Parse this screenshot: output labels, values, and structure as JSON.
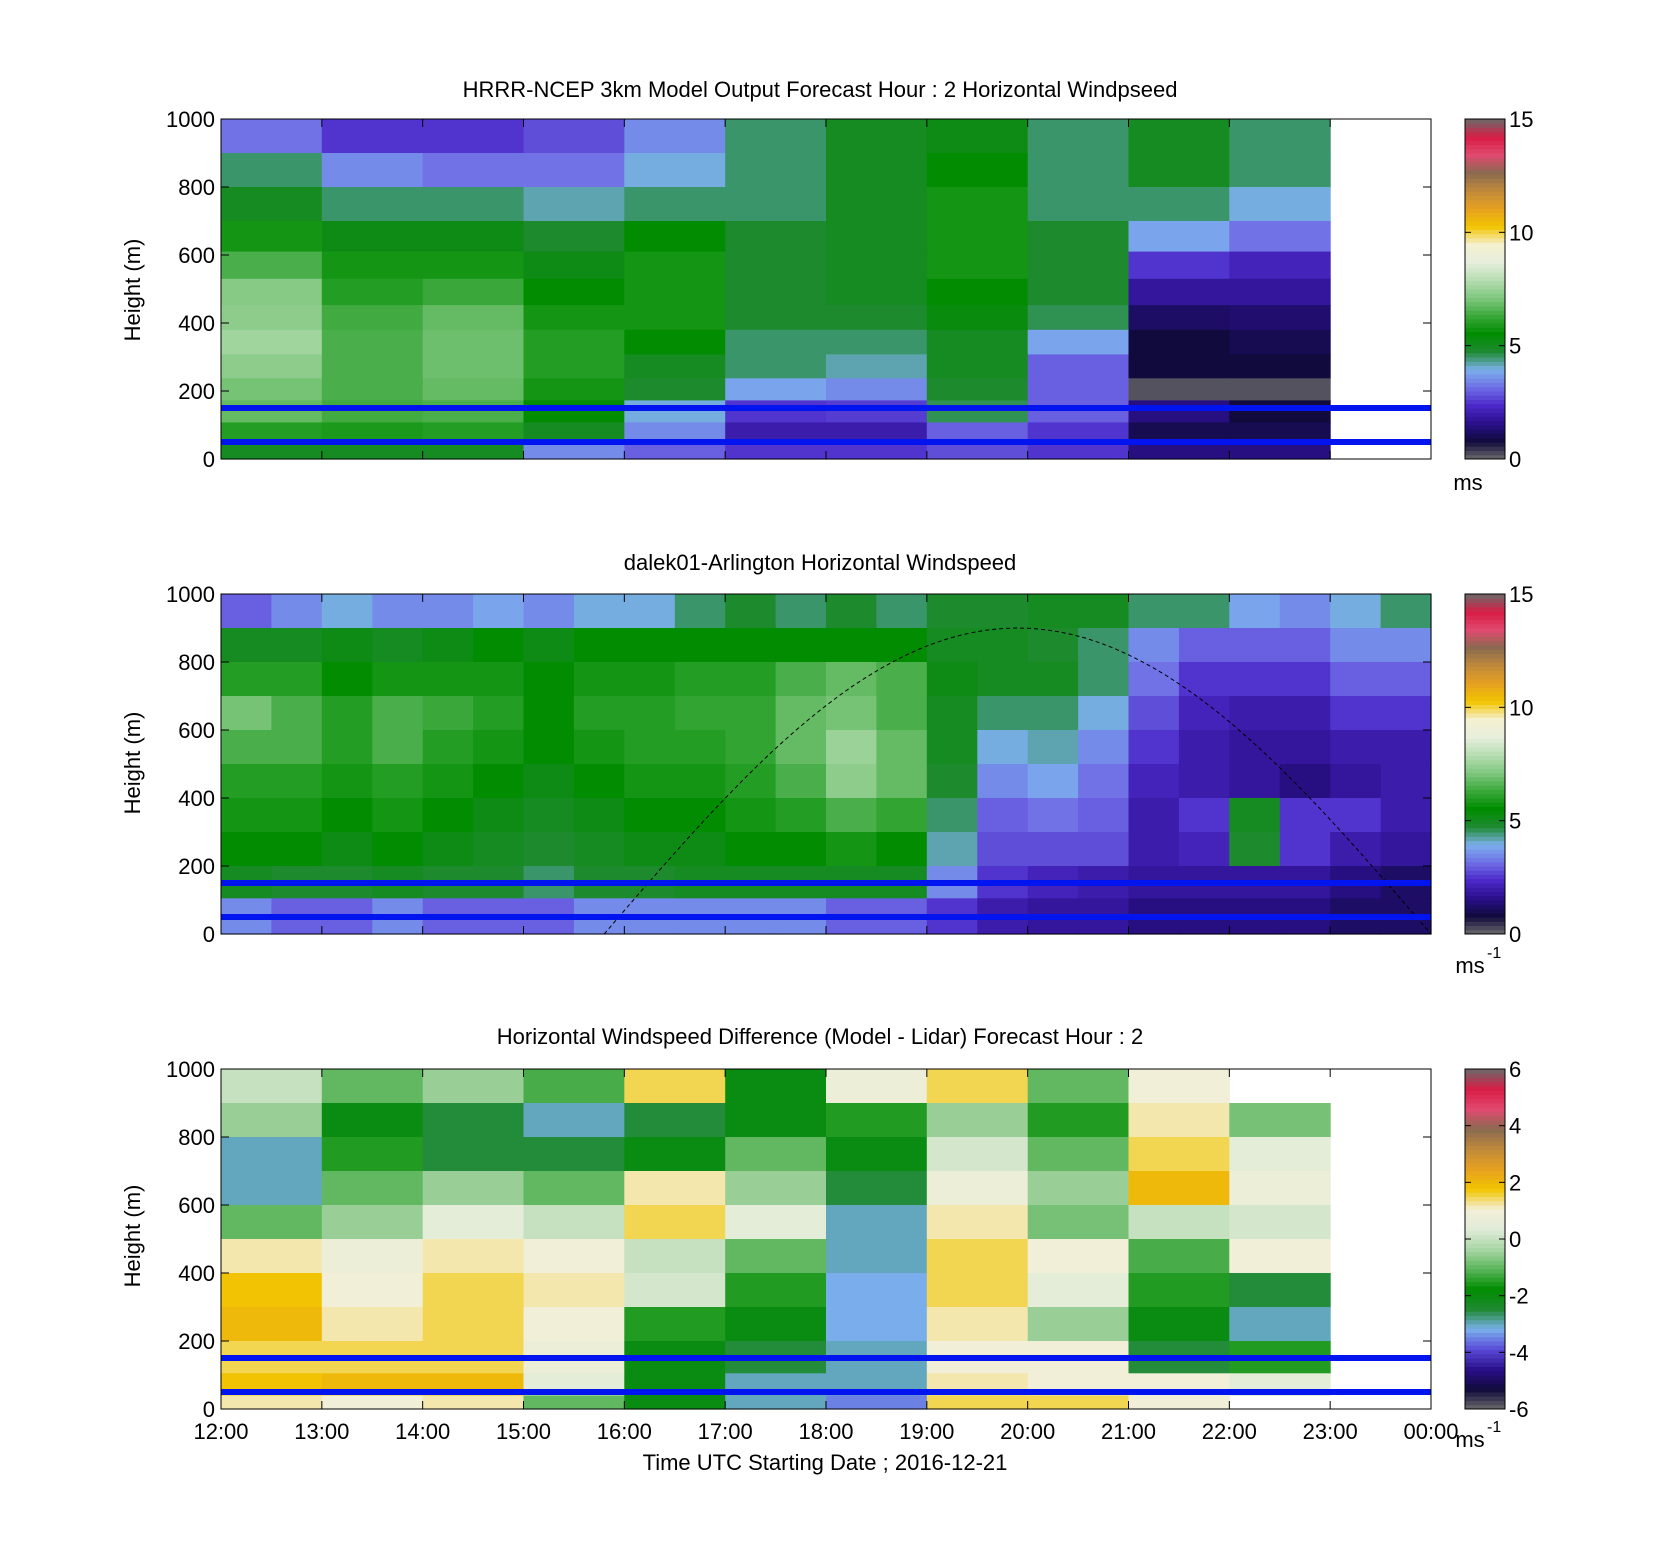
{
  "figure": {
    "xlabel": "Time UTC  Starting Date ; 2016-12-21",
    "x_ticks": [
      "12:00",
      "13:00",
      "14:00",
      "15:00",
      "16:00",
      "17:00",
      "18:00",
      "19:00",
      "20:00",
      "21:00",
      "22:00",
      "23:00",
      "00:00"
    ]
  },
  "chart_data": [
    {
      "type": "heatmap",
      "title": "HRRR-NCEP 3km Model Output   Forecast Hour : 2 Horizontal Windpseed",
      "ylabel": "Height (m)",
      "ylim": [
        0,
        1000
      ],
      "y_ticks": [
        "0",
        "200",
        "400",
        "600",
        "800",
        "1000"
      ],
      "colorbar": {
        "range": [
          0,
          15
        ],
        "ticks": [
          "0",
          "5",
          "10",
          "15"
        ],
        "unit": "ms"
      },
      "reference_lines_m": [
        150,
        50
      ],
      "time_columns": [
        "12:00",
        "13:00",
        "14:00",
        "15:00",
        "16:00",
        "17:00",
        "18:00",
        "19:00",
        "20:00",
        "21:00",
        "22:00"
      ],
      "height_levels_m": [
        950,
        850,
        750,
        650,
        570,
        490,
        415,
        345,
        270,
        205,
        140,
        75,
        30
      ],
      "values_ms": [
        [
          3.2,
          2.5,
          2.5,
          2.8,
          3.5,
          4.5,
          5.0,
          5.2,
          4.5,
          5.0,
          4.5
        ],
        [
          4.5,
          3.5,
          3.2,
          3.2,
          4.0,
          4.5,
          5.0,
          5.5,
          4.5,
          5.0,
          4.5
        ],
        [
          5.0,
          4.5,
          4.5,
          4.2,
          4.5,
          4.5,
          5.0,
          5.8,
          4.5,
          4.5,
          4.0
        ],
        [
          5.8,
          5.2,
          5.2,
          4.8,
          5.5,
          4.8,
          5.0,
          5.8,
          4.8,
          3.8,
          3.2
        ],
        [
          6.5,
          5.8,
          5.8,
          5.2,
          5.8,
          4.8,
          5.0,
          5.8,
          4.8,
          2.5,
          2.2
        ],
        [
          7.2,
          6.0,
          6.3,
          5.5,
          5.8,
          4.8,
          5.0,
          5.5,
          4.8,
          1.8,
          1.8
        ],
        [
          7.3,
          6.4,
          6.8,
          5.8,
          5.8,
          4.8,
          4.8,
          5.3,
          4.6,
          1.2,
          1.3
        ],
        [
          7.6,
          6.5,
          6.9,
          6.0,
          5.5,
          4.5,
          4.5,
          5.0,
          3.8,
          0.8,
          1.0
        ],
        [
          7.3,
          6.5,
          6.9,
          6.0,
          5.0,
          4.5,
          4.2,
          5.0,
          3.0,
          0.8,
          0.8
        ],
        [
          7.0,
          6.5,
          6.8,
          5.8,
          4.8,
          3.8,
          3.5,
          4.8,
          3.0,
          0.2,
          0.2
        ],
        [
          6.8,
          6.4,
          6.5,
          5.5,
          4.0,
          2.5,
          2.6,
          4.6,
          3.0,
          1.5,
          0.8
        ],
        [
          6.0,
          5.9,
          6.0,
          5.0,
          3.5,
          2.0,
          2.0,
          3.0,
          2.5,
          1.0,
          1.0
        ],
        [
          5.0,
          5.0,
          5.0,
          3.5,
          3.0,
          2.5,
          2.5,
          2.8,
          2.5,
          1.5,
          1.5
        ]
      ]
    },
    {
      "type": "heatmap",
      "title": "dalek01-Arlington  Horizontal Windspeed",
      "ylabel": "Height (m)",
      "ylim": [
        0,
        1000
      ],
      "y_ticks": [
        "0",
        "200",
        "400",
        "600",
        "800",
        "1000"
      ],
      "colorbar": {
        "range": [
          0,
          15
        ],
        "ticks": [
          "0",
          "5",
          "10",
          "15"
        ],
        "unit": "ms",
        "unit_exponent": "-1"
      },
      "reference_lines_m": [
        150,
        50
      ],
      "overlay": "dashed arc from 16:00 (0 m) peaking near 20:00 (900 m) down to 00:00 (0 m)",
      "time_columns": [
        "12:00",
        "12:30",
        "13:00",
        "13:30",
        "14:00",
        "14:30",
        "15:00",
        "15:30",
        "16:00",
        "16:30",
        "17:00",
        "17:30",
        "18:00",
        "18:30",
        "19:00",
        "19:30",
        "20:00",
        "20:30",
        "21:00",
        "21:30",
        "22:00",
        "22:30",
        "23:00",
        "23:30"
      ],
      "height_levels_m": [
        950,
        850,
        750,
        650,
        550,
        450,
        350,
        250,
        150,
        60
      ],
      "values_ms": [
        [
          3.0,
          3.5,
          4.0,
          3.5,
          3.5,
          3.8,
          3.5,
          4.0,
          4.0,
          4.5,
          4.8,
          4.5,
          4.8,
          4.5,
          4.8,
          4.8,
          5.0,
          5.0,
          4.5,
          4.5,
          3.8,
          3.5,
          4.0,
          4.5
        ],
        [
          5.0,
          5.0,
          5.2,
          5.0,
          5.2,
          5.5,
          5.2,
          5.5,
          5.5,
          5.5,
          5.5,
          5.5,
          5.5,
          5.5,
          5.0,
          5.0,
          4.8,
          4.5,
          3.5,
          3.0,
          3.0,
          3.0,
          3.5,
          3.5
        ],
        [
          6.0,
          6.0,
          5.5,
          5.8,
          5.8,
          5.8,
          5.5,
          5.8,
          5.8,
          6.0,
          6.0,
          6.5,
          6.8,
          6.5,
          5.2,
          5.0,
          5.0,
          4.5,
          3.2,
          2.5,
          2.5,
          2.5,
          3.0,
          3.0
        ],
        [
          7.0,
          6.5,
          6.0,
          6.5,
          6.3,
          6.0,
          5.5,
          6.0,
          6.0,
          6.2,
          6.2,
          6.8,
          7.0,
          6.5,
          5.0,
          4.5,
          4.5,
          4.0,
          2.8,
          2.2,
          2.0,
          2.0,
          2.5,
          2.5
        ],
        [
          6.5,
          6.5,
          6.0,
          6.5,
          6.0,
          5.8,
          5.5,
          5.8,
          6.0,
          6.0,
          6.2,
          6.8,
          7.5,
          6.8,
          5.0,
          4.0,
          4.2,
          3.5,
          2.5,
          2.0,
          1.8,
          1.8,
          2.0,
          2.0
        ],
        [
          6.0,
          6.0,
          5.8,
          6.0,
          5.8,
          5.5,
          5.2,
          5.5,
          5.8,
          5.8,
          6.0,
          6.5,
          7.3,
          6.8,
          4.8,
          3.5,
          3.8,
          3.2,
          2.2,
          2.0,
          1.8,
          1.5,
          1.8,
          2.0
        ],
        [
          5.8,
          5.8,
          5.5,
          5.8,
          5.5,
          5.2,
          5.0,
          5.2,
          5.5,
          5.5,
          5.8,
          6.0,
          6.5,
          6.2,
          4.5,
          3.0,
          3.2,
          3.0,
          2.0,
          2.5,
          5.0,
          2.5,
          2.5,
          2.0
        ],
        [
          5.5,
          5.5,
          5.2,
          5.5,
          5.2,
          5.0,
          4.8,
          5.0,
          5.2,
          5.2,
          5.5,
          5.5,
          5.8,
          5.5,
          4.2,
          2.8,
          2.8,
          2.8,
          2.0,
          2.2,
          4.8,
          2.5,
          2.0,
          1.8
        ],
        [
          5.0,
          4.8,
          4.8,
          5.0,
          4.8,
          4.8,
          4.5,
          4.8,
          4.8,
          5.0,
          5.0,
          5.0,
          5.0,
          5.0,
          3.5,
          2.5,
          2.2,
          2.0,
          1.8,
          1.8,
          1.8,
          1.8,
          1.5,
          1.2
        ],
        [
          3.5,
          3.0,
          3.0,
          3.5,
          3.0,
          3.0,
          3.0,
          3.5,
          3.5,
          3.5,
          3.5,
          3.5,
          3.0,
          3.0,
          2.5,
          2.0,
          1.8,
          1.8,
          1.5,
          1.5,
          1.5,
          1.5,
          1.2,
          1.2
        ]
      ]
    },
    {
      "type": "heatmap",
      "title": "Horizontal Windspeed Difference (Model - Lidar) Forecast Hour : 2",
      "ylabel": "Height (m)",
      "ylim": [
        0,
        1000
      ],
      "y_ticks": [
        "0",
        "200",
        "400",
        "600",
        "800",
        "1000"
      ],
      "colorbar": {
        "range": [
          -6,
          6
        ],
        "ticks": [
          "-6",
          "-4",
          "-2",
          "0",
          "2",
          "4",
          "6"
        ],
        "unit": "ms",
        "unit_exponent": "-1"
      },
      "reference_lines_m": [
        150,
        50
      ],
      "time_columns": [
        "12:00",
        "13:00",
        "14:00",
        "15:00",
        "16:00",
        "17:00",
        "18:00",
        "19:00",
        "20:00",
        "21:00",
        "22:00"
      ],
      "height_levels_m": [
        950,
        850,
        750,
        650,
        550,
        450,
        350,
        250,
        150,
        60,
        20
      ],
      "values_ms": [
        [
          0.0,
          -1.0,
          -0.5,
          -1.2,
          1.5,
          -2.0,
          0.8,
          1.5,
          -1.0,
          1.0,
          null
        ],
        [
          -0.5,
          -2.0,
          -2.5,
          -3.0,
          -2.5,
          -2.0,
          -1.5,
          -0.5,
          -1.5,
          1.2,
          -0.8
        ],
        [
          -3.0,
          -1.5,
          -2.5,
          -2.5,
          -2.0,
          -1.0,
          -2.0,
          0.2,
          -1.0,
          1.5,
          0.5
        ],
        [
          -3.0,
          -1.0,
          -0.5,
          -1.0,
          1.2,
          -0.5,
          -2.5,
          0.8,
          -0.5,
          2.0,
          0.8
        ],
        [
          -1.0,
          -0.5,
          0.5,
          0.0,
          1.5,
          0.5,
          -3.0,
          1.2,
          -0.8,
          0.0,
          0.2
        ],
        [
          1.2,
          0.8,
          1.2,
          1.0,
          0.0,
          -1.0,
          -3.0,
          1.5,
          1.0,
          -1.2,
          1.0
        ],
        [
          1.8,
          1.0,
          1.5,
          1.2,
          0.2,
          -1.5,
          -3.2,
          1.5,
          0.5,
          -1.5,
          -2.5
        ],
        [
          2.0,
          1.2,
          1.5,
          1.0,
          -1.5,
          -2.0,
          -3.2,
          1.2,
          -0.5,
          -2.0,
          -3.0
        ],
        [
          1.5,
          1.5,
          1.5,
          0.8,
          -2.0,
          -2.5,
          -3.0,
          1.0,
          1.0,
          -2.5,
          -1.5
        ],
        [
          1.8,
          2.0,
          2.0,
          0.5,
          -2.0,
          -3.0,
          -3.0,
          1.2,
          1.0,
          1.0,
          0.5
        ],
        [
          1.2,
          1.0,
          1.2,
          -1.0,
          -2.0,
          -3.0,
          -3.5,
          1.5,
          1.5,
          1.0,
          null
        ]
      ]
    }
  ],
  "colors": {
    "reference_line": "#0014f0",
    "colormap_speed": [
      "#6a6a6a",
      "#100a3c",
      "#2a0f8a",
      "#4b28c8",
      "#6f6ee6",
      "#7cb0ec",
      "#1f8a32",
      "#008c00",
      "#3aa83a",
      "#7fc77f",
      "#b6ddb0",
      "#e7eedd",
      "#f5f0d0",
      "#f2c500",
      "#e6a020",
      "#c08a3a",
      "#8a6a50",
      "#e04a70",
      "#d91c44",
      "#6a6a6a"
    ],
    "colormap_diff": [
      "#6a6a6a",
      "#100a3c",
      "#2a0f8a",
      "#5a4ad8",
      "#7ab0ec",
      "#1f8a32",
      "#008c00",
      "#5ab55a",
      "#a9d6a6",
      "#e0ecd8",
      "#f3efd8",
      "#f2c500",
      "#e6a020",
      "#c08a3a",
      "#8a6a50",
      "#e04a70",
      "#d91c44",
      "#6a6a6a"
    ]
  }
}
